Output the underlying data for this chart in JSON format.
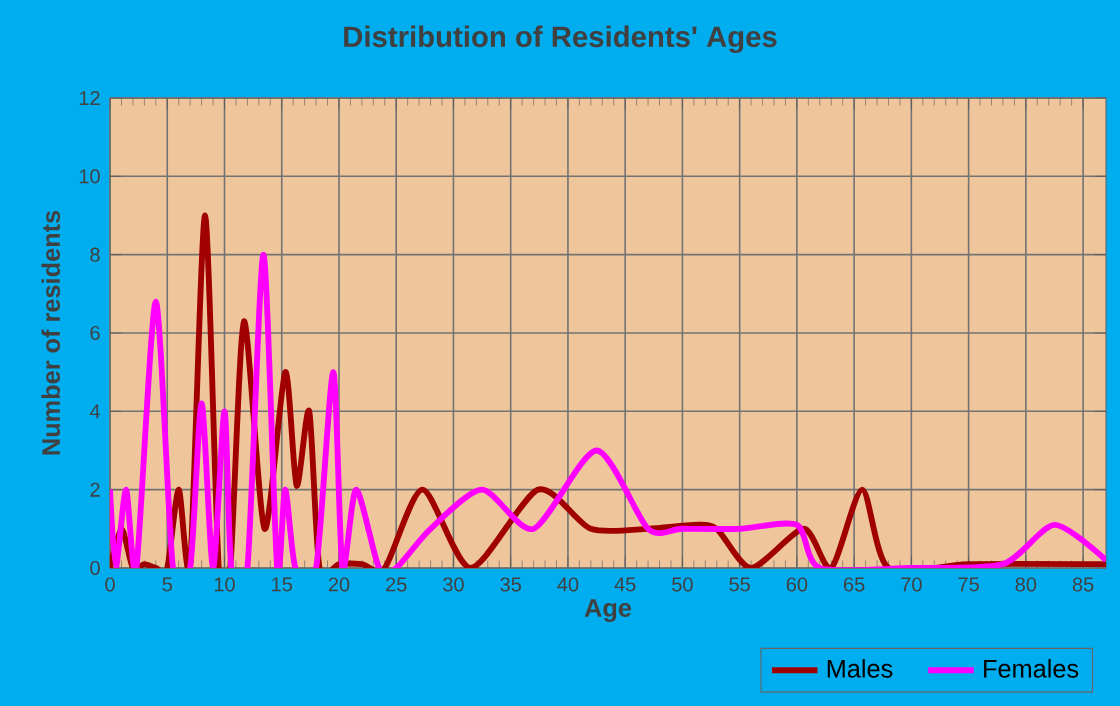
{
  "chart_data": {
    "type": "line",
    "title": "Distribution of Residents' Ages",
    "xlabel": "Age",
    "ylabel": "Number of residents",
    "xlim": [
      0,
      87
    ],
    "xticks": [
      0,
      5,
      10,
      15,
      20,
      25,
      30,
      35,
      40,
      45,
      50,
      55,
      60,
      65,
      70,
      75,
      80,
      85
    ],
    "ylim": [
      0,
      12
    ],
    "yticks": [
      0,
      2,
      4,
      6,
      8,
      10,
      12
    ],
    "grid": true,
    "legend": "bottom right",
    "series": [
      {
        "name": "Males",
        "color": "#a00000",
        "x": [
          0,
          1,
          2,
          3,
          4,
          5,
          6,
          7,
          8.3,
          9.5,
          10.5,
          11.7,
          13.5,
          15.3,
          16.3,
          17.4,
          18.3,
          20,
          22,
          24,
          27.3,
          31.5,
          37.4,
          42,
          47,
          51,
          53,
          56,
          60.6,
          63,
          65.7,
          68,
          75,
          87
        ],
        "values": [
          0,
          1,
          0,
          0.1,
          0,
          0,
          2,
          0.1,
          9,
          0,
          0,
          6.3,
          1,
          5,
          2.1,
          4,
          0,
          0.1,
          0.1,
          0,
          2,
          0,
          2,
          1,
          1,
          1.1,
          1,
          0,
          1,
          0,
          2,
          0,
          0.1,
          0.1
        ]
      },
      {
        "name": "Females",
        "color": "#ff00ff",
        "x": [
          0,
          0.5,
          1.4,
          2.3,
          4,
          5.5,
          7,
          8,
          9,
          10,
          10.6,
          12,
          13.4,
          14.6,
          15.3,
          16.2,
          18,
          19.5,
          20.3,
          21.5,
          23.5,
          25,
          28,
          32.5,
          37,
          42.5,
          47,
          50,
          55,
          60,
          62,
          70,
          78,
          82.5,
          87
        ],
        "values": [
          2,
          0,
          2,
          0,
          6.8,
          0,
          0,
          4.2,
          0,
          4,
          0,
          0,
          8,
          0,
          2,
          0,
          0,
          5,
          0,
          2,
          0,
          0,
          1,
          2,
          1,
          3,
          1,
          1,
          1,
          1.1,
          0,
          0,
          0.1,
          1.1,
          0.2
        ]
      }
    ]
  }
}
